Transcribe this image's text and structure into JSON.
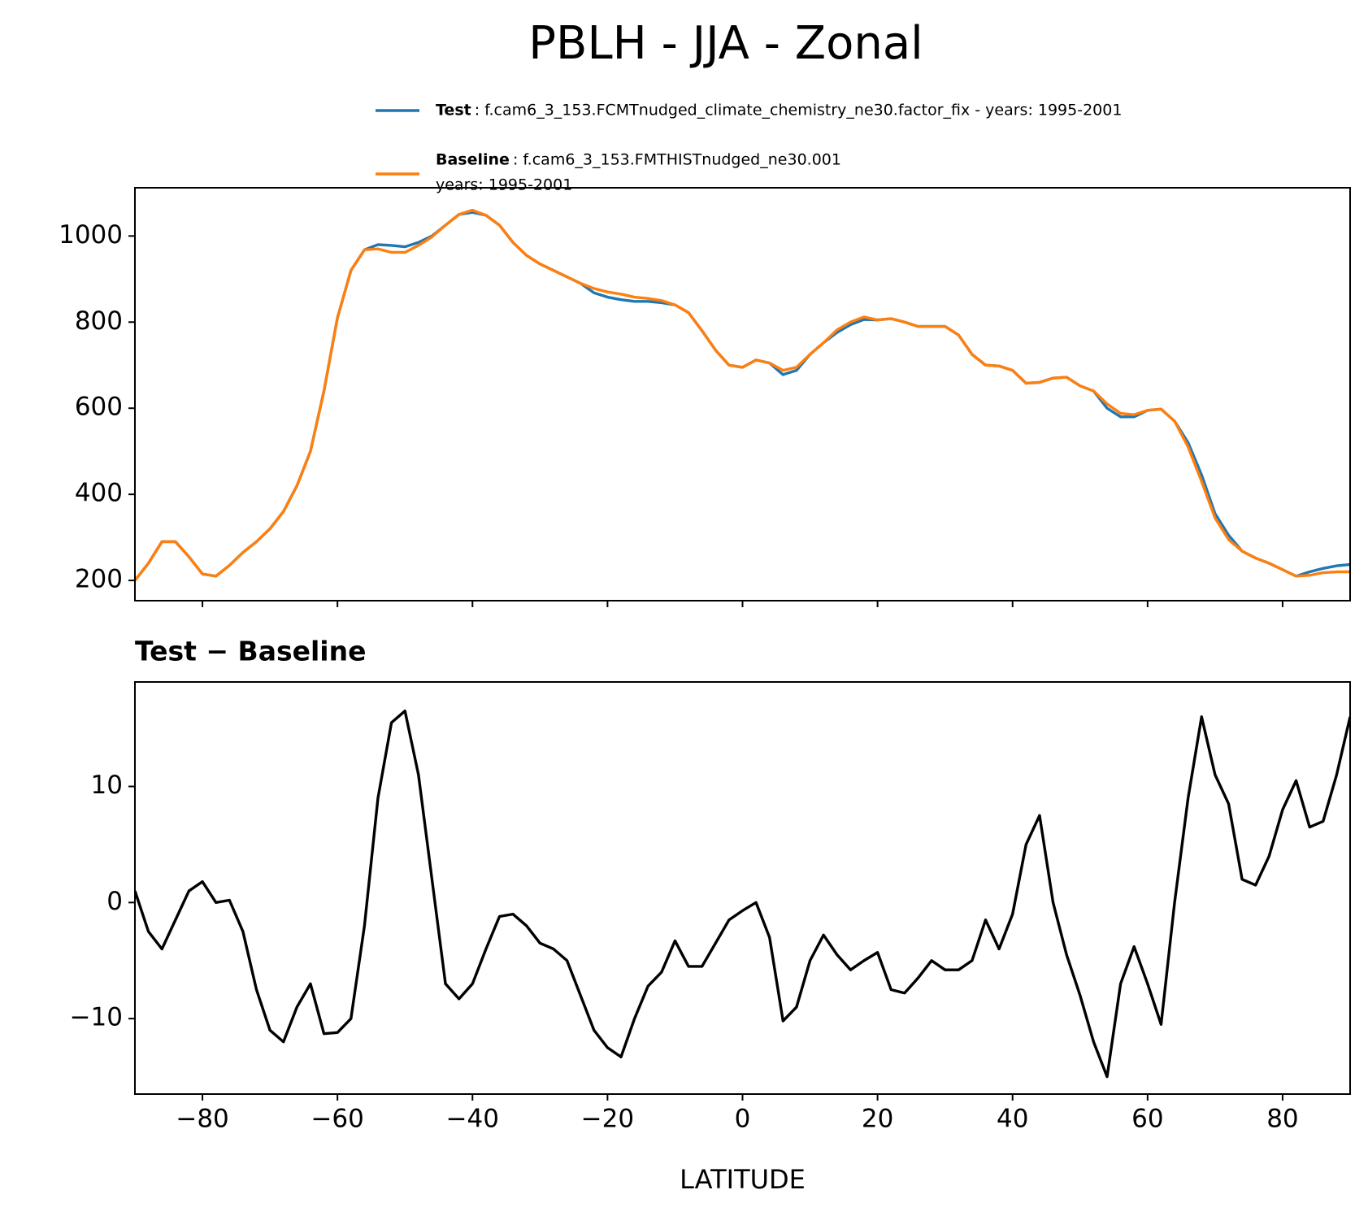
{
  "title": "PBLH - JJA - Zonal",
  "chart_data": [
    {
      "type": "line",
      "x": [
        -90,
        -88,
        -86,
        -84,
        -82,
        -80,
        -78,
        -76,
        -74,
        -72,
        -70,
        -68,
        -66,
        -64,
        -62,
        -60,
        -58,
        -56,
        -54,
        -52,
        -50,
        -48,
        -46,
        -44,
        -42,
        -40,
        -38,
        -36,
        -34,
        -32,
        -30,
        -28,
        -26,
        -24,
        -22,
        -20,
        -18,
        -16,
        -14,
        -12,
        -10,
        -8,
        -6,
        -4,
        -2,
        0,
        2,
        4,
        6,
        8,
        10,
        12,
        14,
        16,
        18,
        20,
        22,
        24,
        26,
        28,
        30,
        32,
        34,
        36,
        38,
        40,
        42,
        44,
        46,
        48,
        50,
        52,
        54,
        56,
        58,
        60,
        62,
        64,
        66,
        68,
        70,
        72,
        74,
        76,
        78,
        80,
        82,
        84,
        86,
        88,
        90
      ],
      "series": [
        {
          "name": "Test",
          "color": "#1f77b4",
          "description": [
            ": f.cam6_3_153.FCMTnudged_climate_chemistry_ne30.factor_fix - years: 1995-2001"
          ],
          "values": [
            200,
            240,
            290,
            290,
            255,
            215,
            210,
            235,
            265,
            290,
            320,
            360,
            420,
            500,
            640,
            810,
            920,
            968,
            980,
            978,
            975,
            985,
            1000,
            1025,
            1050,
            1055,
            1048,
            1025,
            985,
            955,
            935,
            920,
            905,
            890,
            868,
            858,
            852,
            848,
            848,
            845,
            840,
            822,
            780,
            735,
            700,
            695,
            712,
            705,
            678,
            688,
            725,
            752,
            776,
            794,
            806,
            805,
            808,
            800,
            790,
            790,
            790,
            770,
            725,
            700,
            698,
            688,
            658,
            660,
            670,
            672,
            652,
            640,
            600,
            580,
            580,
            595,
            598,
            570,
            520,
            445,
            355,
            305,
            268,
            252,
            240,
            225,
            210,
            220,
            228,
            234,
            237
          ]
        },
        {
          "name": "Baseline",
          "color": "#ff7f0e",
          "description": [
            ": f.cam6_3_153.FMTHISTnudged_ne30.001",
            "years: 1995-2001"
          ],
          "values": [
            200,
            240,
            290,
            290,
            255,
            215,
            210,
            235,
            265,
            290,
            320,
            360,
            420,
            500,
            640,
            810,
            920,
            968,
            970,
            962,
            962,
            978,
            998,
            1025,
            1050,
            1060,
            1048,
            1025,
            985,
            955,
            935,
            920,
            905,
            890,
            878,
            870,
            865,
            858,
            855,
            850,
            840,
            822,
            780,
            735,
            700,
            695,
            712,
            705,
            688,
            695,
            725,
            752,
            782,
            800,
            812,
            805,
            808,
            800,
            790,
            790,
            790,
            770,
            725,
            700,
            698,
            688,
            658,
            660,
            670,
            672,
            652,
            640,
            610,
            588,
            585,
            595,
            598,
            570,
            510,
            430,
            345,
            295,
            268,
            252,
            240,
            225,
            210,
            212,
            218,
            220,
            220
          ]
        }
      ],
      "xlim": [
        -90,
        90
      ],
      "xticks": [
        {
          "value": -80,
          "label": "−80"
        },
        {
          "value": -60,
          "label": "−60"
        },
        {
          "value": -40,
          "label": "−40"
        },
        {
          "value": -20,
          "label": "−20"
        },
        0,
        20,
        40,
        60,
        80
      ],
      "show_xtick_labels": false,
      "ylim": [
        153,
        1112
      ],
      "yticks": [
        200,
        400,
        600,
        800,
        1000
      ],
      "legend": "above"
    },
    {
      "type": "line",
      "title": "Test − Baseline",
      "xlabel": "LATITUDE",
      "x": [
        -90,
        -88,
        -86,
        -84,
        -82,
        -80,
        -78,
        -76,
        -74,
        -72,
        -70,
        -68,
        -66,
        -64,
        -62,
        -60,
        -58,
        -56,
        -54,
        -52,
        -50,
        -48,
        -46,
        -44,
        -42,
        -40,
        -38,
        -36,
        -34,
        -32,
        -30,
        -28,
        -26,
        -24,
        -22,
        -20,
        -18,
        -16,
        -14,
        -12,
        -10,
        -8,
        -6,
        -4,
        -2,
        0,
        2,
        4,
        6,
        8,
        10,
        12,
        14,
        16,
        18,
        20,
        22,
        24,
        26,
        28,
        30,
        32,
        34,
        36,
        38,
        40,
        42,
        44,
        46,
        48,
        50,
        52,
        54,
        56,
        58,
        60,
        62,
        64,
        66,
        68,
        70,
        72,
        74,
        76,
        78,
        80,
        82,
        84,
        86,
        88,
        90
      ],
      "series": [
        {
          "color": "#000000",
          "values": [
            1,
            -2.5,
            -4,
            -1.5,
            1,
            1.8,
            0,
            0.2,
            -2.5,
            -7.5,
            -11,
            -12,
            -9,
            -7,
            -11.3,
            -11.2,
            -10,
            -2,
            9,
            15.5,
            16.5,
            11,
            2,
            -7,
            -8.3,
            -7,
            -4,
            -1.2,
            -1,
            -2,
            -3.5,
            -4,
            -5,
            -8,
            -11,
            -12.5,
            -13.3,
            -10,
            -7.2,
            -6,
            -3.3,
            -5.5,
            -5.5,
            -3.5,
            -1.5,
            -0.7,
            0,
            -3,
            -10.2,
            -9,
            -5,
            -2.8,
            -4.5,
            -5.8,
            -5,
            -4.3,
            -7.5,
            -7.8,
            -6.5,
            -5,
            -5.8,
            -5.8,
            -5,
            -1.5,
            -4,
            -1,
            5,
            7.5,
            0,
            -4.5,
            -8,
            -12,
            -15,
            -7,
            -3.8,
            -7,
            -10.5,
            0,
            9,
            16,
            11,
            8.5,
            2,
            1.5,
            4,
            8,
            10.5,
            6.5,
            7,
            11,
            16
          ]
        }
      ],
      "xlim": [
        -90,
        90
      ],
      "xticks": [
        {
          "value": -80,
          "label": "−80"
        },
        {
          "value": -60,
          "label": "−60"
        },
        {
          "value": -40,
          "label": "−40"
        },
        {
          "value": -20,
          "label": "−20"
        },
        0,
        20,
        40,
        60,
        80
      ],
      "show_xtick_labels": true,
      "ylim": [
        -16.5,
        19
      ],
      "yticks": [
        {
          "value": -10,
          "label": "−10"
        },
        0,
        10
      ]
    }
  ]
}
